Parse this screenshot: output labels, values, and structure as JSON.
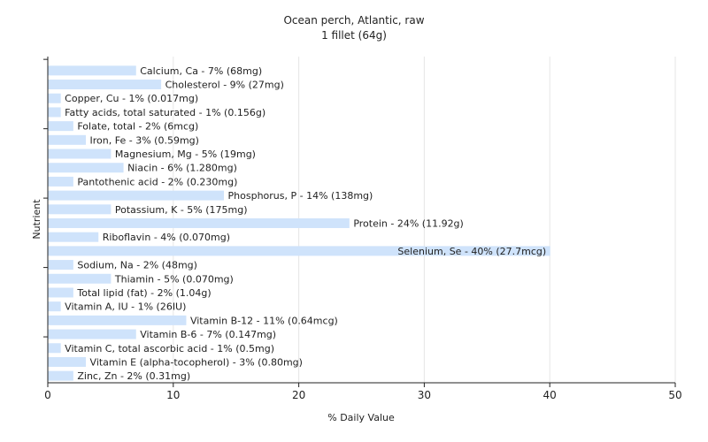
{
  "chart_data": {
    "type": "bar",
    "orientation": "horizontal",
    "title": "Ocean perch, Atlantic, raw",
    "subtitle": "1 fillet (64g)",
    "xlabel": "% Daily Value",
    "ylabel": "Nutrient",
    "xlim": [
      0,
      50
    ],
    "x_ticks": [
      "0",
      "10",
      "20",
      "30",
      "40",
      "50"
    ],
    "grid": true,
    "legend": "none",
    "bar_color": "#cfe3fb",
    "grid_color": "#e6e6e6",
    "axis_color": "#222222",
    "categories": [
      "Calcium, Ca",
      "Cholesterol",
      "Copper, Cu",
      "Fatty acids, total saturated",
      "Folate, total",
      "Iron, Fe",
      "Magnesium, Mg",
      "Niacin",
      "Pantothenic acid",
      "Phosphorus, P",
      "Potassium, K",
      "Protein",
      "Riboflavin",
      "Selenium, Se",
      "Sodium, Na",
      "Thiamin",
      "Total lipid (fat)",
      "Vitamin A, IU",
      "Vitamin B-12",
      "Vitamin B-6",
      "Vitamin C, total ascorbic acid",
      "Vitamin E (alpha-tocopherol)",
      "Zinc, Zn"
    ],
    "values": [
      7,
      9,
      1,
      1,
      2,
      3,
      5,
      6,
      2,
      14,
      5,
      24,
      4,
      40,
      2,
      5,
      2,
      1,
      11,
      7,
      1,
      3,
      2
    ],
    "labels": [
      "Calcium, Ca - 7% (68mg)",
      "Cholesterol - 9% (27mg)",
      "Copper, Cu - 1% (0.017mg)",
      "Fatty acids, total saturated - 1% (0.156g)",
      "Folate, total - 2% (6mcg)",
      "Iron, Fe - 3% (0.59mg)",
      "Magnesium, Mg - 5% (19mg)",
      "Niacin - 6% (1.280mg)",
      "Pantothenic acid - 2% (0.230mg)",
      "Phosphorus, P - 14% (138mg)",
      "Potassium, K - 5% (175mg)",
      "Protein - 24% (11.92g)",
      "Riboflavin - 4% (0.070mg)",
      "Selenium, Se - 40% (27.7mcg)",
      "Sodium, Na - 2% (48mg)",
      "Thiamin - 5% (0.070mg)",
      "Total lipid (fat) - 2% (1.04g)",
      "Vitamin A, IU - 1% (26IU)",
      "Vitamin B-12 - 11% (0.64mcg)",
      "Vitamin B-6 - 7% (0.147mg)",
      "Vitamin C, total ascorbic acid - 1% (0.5mg)",
      "Vitamin E (alpha-tocopherol) - 3% (0.80mg)",
      "Zinc, Zn - 2% (0.31mg)"
    ]
  }
}
